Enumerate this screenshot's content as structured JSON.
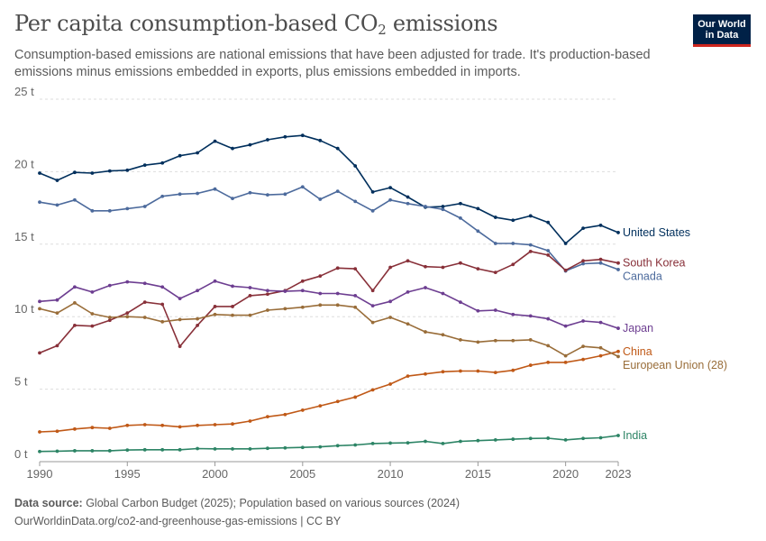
{
  "header": {
    "title_main": "Per capita consumption-based CO",
    "title_sub": "2",
    "title_tail": " emissions",
    "subtitle": "Consumption-based emissions are national emissions that have been adjusted for trade. It's production-based emissions minus emissions embedded in exports, plus emissions embedded in imports."
  },
  "logo": {
    "line1": "Our World",
    "line2": "in Data",
    "bg_color": "#002147",
    "accent_color": "#ce261e"
  },
  "footer": {
    "source_label": "Data source:",
    "source_text": " Global Carbon Budget (2025); Population based on various sources (2024)",
    "url_text": "OurWorldinData.org/co2-and-greenhouse-gas-emissions | CC BY"
  },
  "chart_data": {
    "type": "line",
    "title": "Per capita consumption-based CO₂ emissions",
    "xlabel": "",
    "ylabel": "",
    "xlim": [
      1990,
      2023
    ],
    "ylim": [
      0,
      25
    ],
    "y_ticks": [
      {
        "value": 0,
        "label": "0 t"
      },
      {
        "value": 5,
        "label": "5 t"
      },
      {
        "value": 10,
        "label": "10 t"
      },
      {
        "value": 15,
        "label": "15 t"
      },
      {
        "value": 20,
        "label": "20 t"
      },
      {
        "value": 25,
        "label": "25 t"
      }
    ],
    "x_ticks": [
      1990,
      1995,
      2000,
      2005,
      2010,
      2015,
      2020,
      2023
    ],
    "grid": "horizontal dashed",
    "legend": "inline labels at right end",
    "x": [
      1990,
      1991,
      1992,
      1993,
      1994,
      1995,
      1996,
      1997,
      1998,
      1999,
      2000,
      2001,
      2002,
      2003,
      2004,
      2005,
      2006,
      2007,
      2008,
      2009,
      2010,
      2011,
      2012,
      2013,
      2014,
      2015,
      2016,
      2017,
      2018,
      2019,
      2020,
      2021,
      2022,
      2023
    ],
    "series": [
      {
        "name": "United States",
        "color": "#002f5c",
        "values": [
          19.9,
          19.4,
          19.95,
          19.9,
          20.05,
          20.1,
          20.45,
          20.6,
          21.1,
          21.3,
          22.1,
          21.6,
          21.85,
          22.2,
          22.4,
          22.5,
          22.15,
          21.6,
          20.4,
          18.6,
          18.9,
          18.25,
          17.55,
          17.6,
          17.8,
          17.45,
          16.85,
          16.65,
          16.95,
          16.5,
          15.05,
          16.1,
          16.3,
          15.8
        ]
      },
      {
        "name": "Canada",
        "color": "#4c6a9c",
        "values": [
          17.9,
          17.7,
          18.05,
          17.3,
          17.3,
          17.45,
          17.6,
          18.3,
          18.45,
          18.5,
          18.8,
          18.15,
          18.55,
          18.4,
          18.45,
          18.95,
          18.1,
          18.65,
          17.95,
          17.3,
          18.05,
          17.8,
          17.6,
          17.4,
          16.8,
          15.9,
          15.05,
          15.05,
          14.95,
          14.55,
          13.15,
          13.65,
          13.7,
          13.25
        ]
      },
      {
        "name": "South Korea",
        "color": "#883039",
        "values": [
          7.5,
          8.0,
          9.4,
          9.35,
          9.75,
          10.25,
          11.0,
          10.85,
          7.95,
          9.4,
          10.7,
          10.7,
          11.45,
          11.55,
          11.8,
          12.45,
          12.8,
          13.35,
          13.3,
          11.8,
          13.4,
          13.85,
          13.45,
          13.4,
          13.7,
          13.3,
          13.05,
          13.6,
          14.5,
          14.25,
          13.2,
          13.85,
          13.95,
          13.7
        ]
      },
      {
        "name": "Japan",
        "color": "#6d3e91",
        "values": [
          11.05,
          11.15,
          12.05,
          11.7,
          12.15,
          12.4,
          12.3,
          12.05,
          11.25,
          11.8,
          12.45,
          12.1,
          12.0,
          11.8,
          11.75,
          11.8,
          11.6,
          11.6,
          11.45,
          10.75,
          11.05,
          11.7,
          12.0,
          11.6,
          11.0,
          10.4,
          10.45,
          10.15,
          10.05,
          9.85,
          9.35,
          9.7,
          9.6,
          9.2
        ]
      },
      {
        "name": "China",
        "color": "#c05917",
        "values": [
          2.05,
          2.1,
          2.25,
          2.35,
          2.3,
          2.5,
          2.55,
          2.5,
          2.4,
          2.5,
          2.55,
          2.6,
          2.8,
          3.1,
          3.25,
          3.55,
          3.85,
          4.15,
          4.45,
          4.95,
          5.35,
          5.9,
          6.05,
          6.2,
          6.25,
          6.25,
          6.15,
          6.3,
          6.65,
          6.85,
          6.85,
          7.05,
          7.3,
          7.6
        ]
      },
      {
        "name": "European Union (28)",
        "color": "#996d39",
        "values": [
          10.55,
          10.25,
          10.95,
          10.2,
          9.95,
          10.0,
          9.95,
          9.65,
          9.8,
          9.85,
          10.15,
          10.1,
          10.1,
          10.45,
          10.55,
          10.65,
          10.8,
          10.8,
          10.65,
          9.6,
          9.95,
          9.5,
          8.95,
          8.75,
          8.4,
          8.25,
          8.35,
          8.35,
          8.4,
          8.0,
          7.3,
          7.95,
          7.85,
          7.25
        ]
      },
      {
        "name": "India",
        "color": "#2c8465",
        "values": [
          0.7,
          0.72,
          0.75,
          0.75,
          0.75,
          0.8,
          0.82,
          0.82,
          0.82,
          0.9,
          0.88,
          0.88,
          0.88,
          0.92,
          0.95,
          0.98,
          1.02,
          1.1,
          1.15,
          1.25,
          1.28,
          1.3,
          1.4,
          1.25,
          1.4,
          1.45,
          1.5,
          1.55,
          1.6,
          1.62,
          1.5,
          1.6,
          1.65,
          1.8
        ]
      }
    ]
  }
}
